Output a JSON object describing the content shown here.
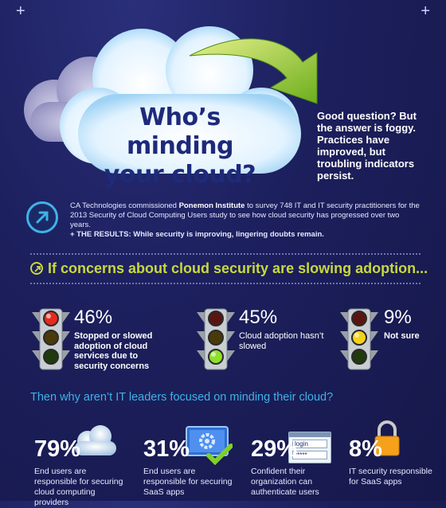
{
  "corners": {
    "left": "+",
    "right": "+"
  },
  "header": {
    "title_line1": "Who’s minding",
    "title_line2": "your cloud?",
    "answer": "Good question? But the answer is foggy. Practices have improved, but troubling indicators persist."
  },
  "intro": {
    "text_a": "CA Technologies commissioned ",
    "text_org": "Ponemon Institute",
    "text_b": " to survey 748 IT and IT security practitioners for the 2013 Security of Cloud Computing Users study  to see how cloud security has progressed over two years.",
    "results": "+ THE RESULTS: While security is improving, lingering doubts remain."
  },
  "question1": "If concerns about cloud security are slowing adoption...",
  "adoption": [
    {
      "pct": "46%",
      "desc": "Stopped or slowed adoption of cloud services due to security concerns",
      "lit": "red"
    },
    {
      "pct": "45%",
      "desc": "Cloud adoption hasn’t slowed",
      "lit": "green"
    },
    {
      "pct": "9%",
      "desc": "Not sure",
      "lit": "yellow"
    }
  ],
  "question2": "Then why aren’t IT leaders focused on minding their cloud?",
  "responsibility": [
    {
      "pct": "79%",
      "desc": "End users are responsible for securing cloud computing providers",
      "icon": "cloud-icon"
    },
    {
      "pct": "31%",
      "desc": "End users are responsible for securing SaaS apps",
      "icon": "monitor-gear-icon"
    },
    {
      "pct": "29%",
      "desc": "Confident their organization can authenticate users",
      "icon": "login-window-icon"
    },
    {
      "pct": "8%",
      "desc": "IT security responsible for SaaS apps",
      "icon": "padlock-icon"
    }
  ],
  "login_icon": {
    "label": "login",
    "password": "*****"
  },
  "colors": {
    "accent_green": "#c8d93c",
    "accent_blue": "#3fb2e8",
    "background": "#1c1f5c"
  }
}
